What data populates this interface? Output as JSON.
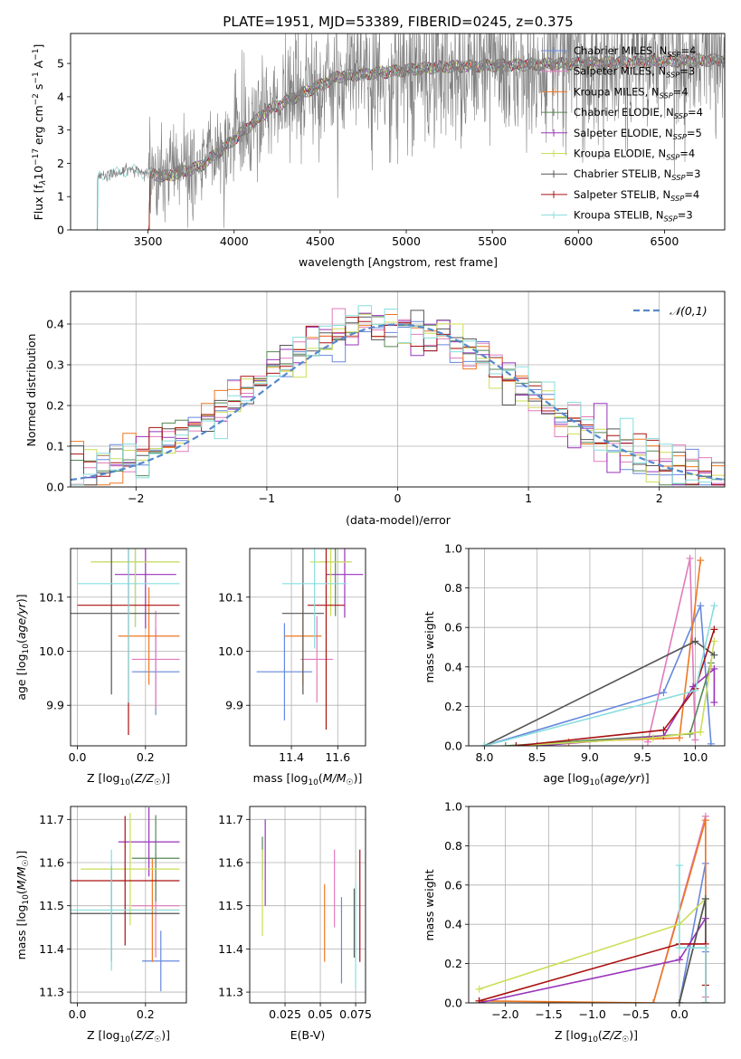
{
  "figure_title": "PLATE=1951, MJD=53389, FIBERID=0245, z=0.375",
  "models": [
    {
      "name": "Chabrier MILES",
      "nssp": "4",
      "color": "#6688dd"
    },
    {
      "name": "Salpeter MILES",
      "nssp": "3",
      "color": "#e07bbb"
    },
    {
      "name": "Kroupa MILES",
      "nssp": "4",
      "color": "#ee7722"
    },
    {
      "name": "Chabrier ELODIE",
      "nssp": "4",
      "color": "#558855"
    },
    {
      "name": "Salpeter ELODIE",
      "nssp": "5",
      "color": "#9933bb"
    },
    {
      "name": "Kroupa ELODIE",
      "nssp": "4",
      "color": "#ccdd55"
    },
    {
      "name": "Chabrier STELIB",
      "nssp": "3",
      "color": "#555555"
    },
    {
      "name": "Salpeter STELIB",
      "nssp": "4",
      "color": "#aa1111"
    },
    {
      "name": "Kroupa STELIB",
      "nssp": "3",
      "color": "#88dddd"
    }
  ],
  "chart_data": [
    {
      "id": "spectrum",
      "type": "line",
      "xlabel": "wavelength [Angstrom, rest frame]",
      "ylabel": "Flux [f_λ 10^-17 erg cm^-2 s^-1 A^-1]",
      "xlim": [
        3050,
        6850
      ],
      "ylim": [
        0,
        5.9
      ],
      "xticks": [
        3500,
        4000,
        4500,
        5000,
        5500,
        6000,
        6500
      ],
      "yticks": [
        0,
        1,
        2,
        3,
        4,
        5
      ],
      "legend": "upper right",
      "continuum_knots": [
        [
          3200,
          1.6
        ],
        [
          3400,
          1.8
        ],
        [
          3600,
          1.6
        ],
        [
          3800,
          1.9
        ],
        [
          3950,
          2.5
        ],
        [
          4200,
          3.6
        ],
        [
          4600,
          4.6
        ],
        [
          5200,
          4.9
        ],
        [
          6000,
          5.0
        ],
        [
          6800,
          5.1
        ]
      ],
      "data_start": 3200,
      "models_start": [
        3500,
        3500,
        3500,
        3500,
        3500,
        3500,
        3500,
        3500,
        3200
      ]
    },
    {
      "id": "residual-histogram",
      "type": "line",
      "xlabel": "(data-model)/error",
      "ylabel": "Normed distribution",
      "xlim": [
        -2.5,
        2.5
      ],
      "ylim": [
        0,
        0.48
      ],
      "xticks": [
        -2,
        -1,
        0,
        1,
        2
      ],
      "yticks": [
        0,
        0.1,
        0.2,
        0.3,
        0.4
      ],
      "grid": true,
      "legend": "upper right",
      "reference_label": "𝒩(0,1)",
      "reference_color": "#5588cc",
      "bin_width": 0.1
    },
    {
      "id": "age-vs-Z",
      "type": "scatter",
      "xlabel": "Z [log10(Z/Z☉)]",
      "ylabel": "age  [log10(age/yr)]",
      "xlim": [
        -0.02,
        0.32
      ],
      "ylim": [
        9.825,
        10.19
      ],
      "xticks": [
        0.0,
        0.2
      ],
      "yticks": [
        9.9,
        10.0,
        10.1
      ],
      "grid": true,
      "points": [
        {
          "model": 0,
          "x": 0.23,
          "y": 9.962,
          "xerr": 0.07,
          "yerr": 0.08
        },
        {
          "model": 1,
          "x": 0.23,
          "y": 9.985,
          "xerr": 0.07,
          "yerr": 0.09
        },
        {
          "model": 2,
          "x": 0.21,
          "y": 10.028,
          "xerr": 0.09,
          "yerr": 0.09
        },
        {
          "model": 3,
          "x": 0.17,
          "y": 10.165,
          "xerr": 0.13,
          "yerr": 0.12
        },
        {
          "model": 4,
          "x": 0.2,
          "y": 10.142,
          "xerr": 0.09,
          "yerr": 0.1
        },
        {
          "model": 5,
          "x": 0.17,
          "y": 10.165,
          "xerr": 0.13,
          "yerr": 0.12
        },
        {
          "model": 6,
          "x": 0.1,
          "y": 10.07,
          "xerr": 0.2,
          "yerr": 0.15
        },
        {
          "model": 7,
          "x": 0.15,
          "y": 10.085,
          "xerr": 0.15,
          "yerr": 0.24
        },
        {
          "model": 8,
          "x": 0.15,
          "y": 10.125,
          "xerr": 0.15,
          "yerr": 0.22
        }
      ]
    },
    {
      "id": "age-vs-mass",
      "type": "scatter",
      "xlabel": "mass [log10(M/M☉)]",
      "ylabel": "",
      "xlim": [
        11.22,
        11.72
      ],
      "ylim": [
        9.825,
        10.19
      ],
      "xticks": [
        11.4,
        11.6
      ],
      "yticks": [
        9.9,
        10.0,
        10.1
      ],
      "grid": true,
      "points": [
        {
          "model": 0,
          "x": 11.37,
          "y": 9.962,
          "xerr": 0.12,
          "yerr": 0.09
        },
        {
          "model": 1,
          "x": 11.51,
          "y": 9.985,
          "xerr": 0.07,
          "yerr": 0.08
        },
        {
          "model": 2,
          "x": 11.45,
          "y": 10.028,
          "xerr": 0.08,
          "yerr": 0.09
        },
        {
          "model": 3,
          "x": 11.59,
          "y": 10.165,
          "xerr": 0.07,
          "yerr": 0.1
        },
        {
          "model": 4,
          "x": 11.63,
          "y": 10.142,
          "xerr": 0.08,
          "yerr": 0.08
        },
        {
          "model": 5,
          "x": 11.57,
          "y": 10.165,
          "xerr": 0.09,
          "yerr": 0.1
        },
        {
          "model": 6,
          "x": 11.45,
          "y": 10.07,
          "xerr": 0.09,
          "yerr": 0.15
        },
        {
          "model": 7,
          "x": 11.55,
          "y": 10.085,
          "xerr": 0.08,
          "yerr": 0.23
        },
        {
          "model": 8,
          "x": 11.5,
          "y": 10.125,
          "xerr": 0.14,
          "yerr": 0.12
        }
      ]
    },
    {
      "id": "weight-vs-age",
      "type": "line",
      "xlabel": "age  [log10(age/yr)]",
      "ylabel": "mass weight",
      "xlim": [
        7.85,
        10.28
      ],
      "ylim": [
        0,
        1.0
      ],
      "xticks": [
        8.0,
        8.5,
        9.0,
        9.5,
        10.0
      ],
      "yticks": [
        0.0,
        0.2,
        0.4,
        0.6,
        0.8,
        1.0
      ],
      "grid": true,
      "series": [
        {
          "model": 0,
          "x": [
            8.0,
            9.7,
            10.05,
            10.15
          ],
          "y": [
            0.0,
            0.27,
            0.71,
            0.01
          ]
        },
        {
          "model": 1,
          "x": [
            9.55,
            9.95,
            10.0
          ],
          "y": [
            0.02,
            0.95,
            0.03
          ]
        },
        {
          "model": 2,
          "x": [
            8.8,
            9.85,
            10.05
          ],
          "y": [
            0.02,
            0.04,
            0.94
          ]
        },
        {
          "model": 3,
          "x": [
            8.2,
            9.95,
            10.15
          ],
          "y": [
            0.0,
            0.06,
            0.42
          ]
        },
        {
          "model": 4,
          "x": [
            8.5,
            9.7,
            9.98,
            10.18,
            10.18
          ],
          "y": [
            0.0,
            0.05,
            0.3,
            0.39,
            0.22
          ]
        },
        {
          "model": 5,
          "x": [
            8.3,
            9.6,
            10.05,
            10.18
          ],
          "y": [
            0.0,
            0.04,
            0.07,
            0.53
          ]
        },
        {
          "model": 6,
          "x": [
            8.0,
            10.0,
            10.18
          ],
          "y": [
            0.0,
            0.53,
            0.46
          ]
        },
        {
          "model": 7,
          "x": [
            8.3,
            9.7,
            10.0,
            10.18
          ],
          "y": [
            0.0,
            0.08,
            0.29,
            0.59
          ]
        },
        {
          "model": 8,
          "x": [
            8.0,
            10.0,
            10.18
          ],
          "y": [
            0.0,
            0.28,
            0.71
          ]
        }
      ]
    },
    {
      "id": "mass-vs-Z",
      "type": "scatter",
      "xlabel": "Z [log10(Z/Z☉)]",
      "ylabel": "mass [log10(M/M☉)]",
      "xlim": [
        -0.02,
        0.32
      ],
      "ylim": [
        11.275,
        11.73
      ],
      "xticks": [
        0.0,
        0.2
      ],
      "yticks": [
        11.3,
        11.4,
        11.5,
        11.6,
        11.7
      ],
      "grid": true,
      "points": [
        {
          "model": 0,
          "x": 0.245,
          "y": 11.372,
          "xerr": 0.055,
          "yerr": 0.07
        },
        {
          "model": 1,
          "x": 0.23,
          "y": 11.5,
          "xerr": 0.07,
          "yerr": 0.12
        },
        {
          "model": 2,
          "x": 0.22,
          "y": 11.49,
          "xerr": 0.08,
          "yerr": 0.12
        },
        {
          "model": 3,
          "x": 0.23,
          "y": 11.61,
          "xerr": 0.07,
          "yerr": 0.1
        },
        {
          "model": 4,
          "x": 0.21,
          "y": 11.648,
          "xerr": 0.09,
          "yerr": 0.08
        },
        {
          "model": 5,
          "x": 0.155,
          "y": 11.585,
          "xerr": 0.145,
          "yerr": 0.13
        },
        {
          "model": 6,
          "x": 0.1,
          "y": 11.482,
          "xerr": 0.2,
          "yerr": 0.11
        },
        {
          "model": 7,
          "x": 0.14,
          "y": 11.558,
          "xerr": 0.16,
          "yerr": 0.15
        },
        {
          "model": 8,
          "x": 0.1,
          "y": 11.49,
          "xerr": 0.2,
          "yerr": 0.14
        }
      ]
    },
    {
      "id": "mass-vs-ebv",
      "type": "scatter",
      "xlabel": "E(B-V)",
      "ylabel": "",
      "xlim": [
        0.0,
        0.082
      ],
      "ylim": [
        11.275,
        11.73
      ],
      "xticks": [
        0.025,
        0.05,
        0.075
      ],
      "yticks": [
        11.3,
        11.4,
        11.5,
        11.6,
        11.7
      ],
      "grid": true,
      "points": [
        {
          "model": 0,
          "x": 0.065,
          "yerr": 0.1,
          "y": 11.42
        },
        {
          "model": 1,
          "x": 0.06,
          "yerr": 0.09,
          "y": 11.54
        },
        {
          "model": 2,
          "x": 0.053,
          "yerr": 0.09,
          "y": 11.46
        },
        {
          "model": 3,
          "x": 0.009,
          "yerr": 0.05,
          "y": 11.61
        },
        {
          "model": 4,
          "x": 0.011,
          "yerr": 0.1,
          "y": 11.6
        },
        {
          "model": 5,
          "x": 0.009,
          "yerr": 0.1,
          "y": 11.53
        },
        {
          "model": 6,
          "x": 0.074,
          "yerr": 0.08,
          "y": 11.46
        },
        {
          "model": 7,
          "x": 0.078,
          "yerr": 0.13,
          "y": 11.5
        },
        {
          "model": 8,
          "x": 0.075,
          "yerr": 0.12,
          "y": 11.43
        }
      ]
    },
    {
      "id": "weight-vs-Z",
      "type": "line",
      "xlabel": "Z [log10(Z/Z☉)]",
      "ylabel": "mass weight",
      "xlim": [
        -2.42,
        0.52
      ],
      "ylim": [
        0,
        1.0
      ],
      "xticks": [
        -2.0,
        -1.5,
        -1.0,
        -0.5,
        0.0
      ],
      "yticks": [
        0.0,
        0.2,
        0.4,
        0.6,
        0.8,
        1.0
      ],
      "grid": true,
      "series": [
        {
          "model": 0,
          "x": [
            0.0,
            0.3,
            0.3
          ],
          "y": [
            0.0,
            0.71,
            0.26
          ]
        },
        {
          "model": 1,
          "x": [
            -0.3,
            0.3,
            0.3
          ],
          "y": [
            0.0,
            0.95,
            0.03
          ]
        },
        {
          "model": 2,
          "x": [
            -2.3,
            -0.3,
            0.3,
            0.3
          ],
          "y": [
            0.01,
            0.0,
            0.93,
            0.0
          ]
        },
        {
          "model": 3,
          "x": [
            0.0,
            0.3,
            0.3
          ],
          "y": [
            0.0,
            0.53,
            0.0
          ]
        },
        {
          "model": 4,
          "x": [
            -2.3,
            0.0,
            0.3,
            0.3
          ],
          "y": [
            0.0,
            0.22,
            0.43,
            0.0
          ]
        },
        {
          "model": 5,
          "x": [
            -2.3,
            0.0,
            0.3,
            0.3
          ],
          "y": [
            0.07,
            0.4,
            0.53,
            0.0
          ]
        },
        {
          "model": 6,
          "x": [
            0.0,
            0.3,
            0.3
          ],
          "y": [
            0.0,
            0.53,
            0.0
          ]
        },
        {
          "model": 7,
          "x": [
            -2.3,
            0.0,
            0.3,
            0.3
          ],
          "y": [
            0.01,
            0.3,
            0.3,
            0.09
          ]
        },
        {
          "model": 8,
          "x": [
            0.0,
            0.0,
            0.3,
            0.3
          ],
          "y": [
            0.7,
            0.28,
            0.28,
            0.0
          ]
        }
      ]
    }
  ]
}
